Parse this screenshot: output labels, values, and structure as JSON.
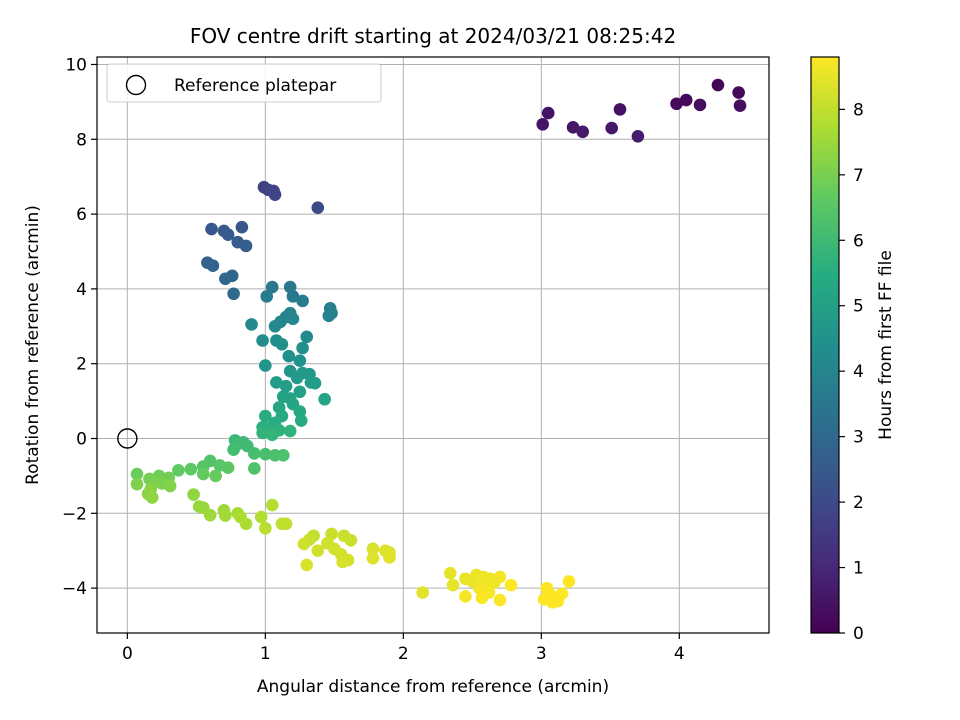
{
  "chart_data": {
    "type": "scatter",
    "title": "FOV centre drift starting at 2024/03/21 08:25:42",
    "xlabel": "Angular distance from reference (arcmin)",
    "ylabel": "Rotation from reference (arcmin)",
    "xlim": [
      -0.22,
      4.65
    ],
    "ylim": [
      -5.2,
      10.2
    ],
    "xticks": [
      0,
      1,
      2,
      3,
      4
    ],
    "yticks": [
      -4,
      -2,
      0,
      2,
      4,
      6,
      8,
      10
    ],
    "grid": true,
    "legend": {
      "position": "top-left",
      "entries": [
        "Reference platepar"
      ]
    },
    "reference_point": {
      "x": 0,
      "y": 0
    },
    "colorbar": {
      "label": "Hours from first FF file",
      "colormap": "viridis",
      "range": [
        0,
        8.8
      ],
      "ticks": [
        0,
        1,
        2,
        3,
        4,
        5,
        6,
        7,
        8
      ]
    },
    "series": [
      {
        "points": [
          {
            "x": 4.28,
            "y": 9.45,
            "t": 0.1
          },
          {
            "x": 4.43,
            "y": 9.25,
            "t": 0.15
          },
          {
            "x": 4.05,
            "y": 9.05,
            "t": 0.2
          },
          {
            "x": 3.98,
            "y": 8.95,
            "t": 0.25
          },
          {
            "x": 4.15,
            "y": 8.92,
            "t": 0.3
          },
          {
            "x": 4.44,
            "y": 8.9,
            "t": 0.35
          },
          {
            "x": 3.57,
            "y": 8.8,
            "t": 0.4
          },
          {
            "x": 3.05,
            "y": 8.7,
            "t": 0.45
          },
          {
            "x": 3.01,
            "y": 8.4,
            "t": 0.5
          },
          {
            "x": 3.23,
            "y": 8.32,
            "t": 0.55
          },
          {
            "x": 3.51,
            "y": 8.3,
            "t": 0.6
          },
          {
            "x": 3.3,
            "y": 8.2,
            "t": 0.65
          },
          {
            "x": 3.7,
            "y": 8.08,
            "t": 0.7
          },
          {
            "x": 0.99,
            "y": 6.72,
            "t": 1.7
          },
          {
            "x": 1.06,
            "y": 6.62,
            "t": 1.75
          },
          {
            "x": 1.02,
            "y": 6.65,
            "t": 1.8
          },
          {
            "x": 1.07,
            "y": 6.52,
            "t": 1.85
          },
          {
            "x": 1.38,
            "y": 6.17,
            "t": 1.95
          },
          {
            "x": 0.61,
            "y": 5.6,
            "t": 2.4
          },
          {
            "x": 0.83,
            "y": 5.65,
            "t": 2.45
          },
          {
            "x": 0.7,
            "y": 5.55,
            "t": 2.5
          },
          {
            "x": 0.73,
            "y": 5.45,
            "t": 2.55
          },
          {
            "x": 0.8,
            "y": 5.25,
            "t": 2.6
          },
          {
            "x": 0.86,
            "y": 5.15,
            "t": 2.65
          },
          {
            "x": 0.58,
            "y": 4.7,
            "t": 2.75
          },
          {
            "x": 0.62,
            "y": 4.62,
            "t": 2.8
          },
          {
            "x": 0.76,
            "y": 4.35,
            "t": 2.9
          },
          {
            "x": 0.71,
            "y": 4.27,
            "t": 2.95
          },
          {
            "x": 0.77,
            "y": 3.87,
            "t": 3.05
          },
          {
            "x": 1.05,
            "y": 4.05,
            "t": 3.5
          },
          {
            "x": 1.18,
            "y": 4.05,
            "t": 3.55
          },
          {
            "x": 1.2,
            "y": 3.8,
            "t": 3.6
          },
          {
            "x": 1.01,
            "y": 3.8,
            "t": 3.65
          },
          {
            "x": 1.27,
            "y": 3.68,
            "t": 3.7
          },
          {
            "x": 1.47,
            "y": 3.48,
            "t": 3.75
          },
          {
            "x": 1.48,
            "y": 3.35,
            "t": 3.8
          },
          {
            "x": 1.46,
            "y": 3.28,
            "t": 3.85
          },
          {
            "x": 1.18,
            "y": 3.35,
            "t": 3.9
          },
          {
            "x": 1.15,
            "y": 3.25,
            "t": 3.95
          },
          {
            "x": 1.11,
            "y": 3.12,
            "t": 4.0
          },
          {
            "x": 1.2,
            "y": 3.2,
            "t": 4.05
          },
          {
            "x": 1.07,
            "y": 3.0,
            "t": 4.1
          },
          {
            "x": 0.9,
            "y": 3.05,
            "t": 4.15
          },
          {
            "x": 1.3,
            "y": 2.72,
            "t": 4.2
          },
          {
            "x": 0.98,
            "y": 2.62,
            "t": 4.25
          },
          {
            "x": 1.08,
            "y": 2.62,
            "t": 4.3
          },
          {
            "x": 1.12,
            "y": 2.52,
            "t": 4.35
          },
          {
            "x": 1.27,
            "y": 2.42,
            "t": 4.4
          },
          {
            "x": 1.17,
            "y": 2.2,
            "t": 4.45
          },
          {
            "x": 1.25,
            "y": 2.08,
            "t": 4.5
          },
          {
            "x": 1.0,
            "y": 1.95,
            "t": 4.55
          },
          {
            "x": 1.18,
            "y": 1.8,
            "t": 4.6
          },
          {
            "x": 1.27,
            "y": 1.75,
            "t": 4.65
          },
          {
            "x": 1.32,
            "y": 1.72,
            "t": 4.7
          },
          {
            "x": 1.23,
            "y": 1.62,
            "t": 4.75
          },
          {
            "x": 1.08,
            "y": 1.5,
            "t": 4.8
          },
          {
            "x": 1.33,
            "y": 1.5,
            "t": 4.85
          },
          {
            "x": 1.36,
            "y": 1.48,
            "t": 4.9
          },
          {
            "x": 1.15,
            "y": 1.4,
            "t": 4.95
          },
          {
            "x": 1.25,
            "y": 1.25,
            "t": 5.0
          },
          {
            "x": 1.13,
            "y": 1.12,
            "t": 5.05
          },
          {
            "x": 1.18,
            "y": 1.07,
            "t": 5.1
          },
          {
            "x": 1.43,
            "y": 1.05,
            "t": 5.15
          },
          {
            "x": 1.2,
            "y": 0.92,
            "t": 5.2
          },
          {
            "x": 1.1,
            "y": 0.83,
            "t": 5.25
          },
          {
            "x": 1.25,
            "y": 0.72,
            "t": 5.3
          },
          {
            "x": 1.12,
            "y": 0.6,
            "t": 5.35
          },
          {
            "x": 1.26,
            "y": 0.48,
            "t": 5.4
          },
          {
            "x": 1.0,
            "y": 0.6,
            "t": 5.45
          },
          {
            "x": 1.07,
            "y": 0.42,
            "t": 5.5
          },
          {
            "x": 0.98,
            "y": 0.3,
            "t": 5.55
          },
          {
            "x": 1.03,
            "y": 0.28,
            "t": 5.6
          },
          {
            "x": 1.1,
            "y": 0.22,
            "t": 5.65
          },
          {
            "x": 1.18,
            "y": 0.2,
            "t": 5.7
          },
          {
            "x": 0.98,
            "y": 0.15,
            "t": 5.75
          },
          {
            "x": 1.05,
            "y": 0.1,
            "t": 5.8
          },
          {
            "x": 0.78,
            "y": -0.05,
            "t": 5.9
          },
          {
            "x": 0.84,
            "y": -0.1,
            "t": 5.95
          },
          {
            "x": 0.8,
            "y": -0.15,
            "t": 6.0
          },
          {
            "x": 0.87,
            "y": -0.2,
            "t": 6.05
          },
          {
            "x": 0.77,
            "y": -0.3,
            "t": 6.1
          },
          {
            "x": 0.92,
            "y": -0.4,
            "t": 6.15
          },
          {
            "x": 1.0,
            "y": -0.42,
            "t": 6.2
          },
          {
            "x": 1.07,
            "y": -0.45,
            "t": 6.25
          },
          {
            "x": 1.13,
            "y": -0.45,
            "t": 6.3
          },
          {
            "x": 0.92,
            "y": -0.8,
            "t": 6.35
          },
          {
            "x": 0.6,
            "y": -0.6,
            "t": 6.4
          },
          {
            "x": 0.55,
            "y": -0.75,
            "t": 6.45
          },
          {
            "x": 0.67,
            "y": -0.72,
            "t": 6.5
          },
          {
            "x": 0.73,
            "y": -0.78,
            "t": 6.55
          },
          {
            "x": 0.46,
            "y": -0.82,
            "t": 6.6
          },
          {
            "x": 0.37,
            "y": -0.85,
            "t": 6.65
          },
          {
            "x": 0.55,
            "y": -0.95,
            "t": 6.7
          },
          {
            "x": 0.64,
            "y": -1.0,
            "t": 6.75
          },
          {
            "x": 0.07,
            "y": -0.95,
            "t": 6.8
          },
          {
            "x": 0.23,
            "y": -1.0,
            "t": 6.85
          },
          {
            "x": 0.3,
            "y": -1.05,
            "t": 6.9
          },
          {
            "x": 0.16,
            "y": -1.08,
            "t": 6.95
          },
          {
            "x": 0.19,
            "y": -1.15,
            "t": 7.0
          },
          {
            "x": 0.25,
            "y": -1.2,
            "t": 7.05
          },
          {
            "x": 0.07,
            "y": -1.22,
            "t": 7.1
          },
          {
            "x": 0.31,
            "y": -1.27,
            "t": 7.15
          },
          {
            "x": 0.17,
            "y": -1.35,
            "t": 7.2
          },
          {
            "x": 0.15,
            "y": -1.48,
            "t": 7.25
          },
          {
            "x": 0.18,
            "y": -1.58,
            "t": 7.3
          },
          {
            "x": 0.48,
            "y": -1.5,
            "t": 7.35
          },
          {
            "x": 0.52,
            "y": -1.82,
            "t": 7.4
          },
          {
            "x": 0.55,
            "y": -1.85,
            "t": 7.45
          },
          {
            "x": 0.7,
            "y": -1.92,
            "t": 7.5
          },
          {
            "x": 0.6,
            "y": -2.05,
            "t": 7.55
          },
          {
            "x": 0.71,
            "y": -2.06,
            "t": 7.6
          },
          {
            "x": 0.8,
            "y": -2.0,
            "t": 7.65
          },
          {
            "x": 0.82,
            "y": -2.1,
            "t": 7.7
          },
          {
            "x": 0.86,
            "y": -2.28,
            "t": 7.75
          },
          {
            "x": 0.97,
            "y": -2.1,
            "t": 7.8
          },
          {
            "x": 1.05,
            "y": -1.78,
            "t": 7.85
          },
          {
            "x": 1.0,
            "y": -2.4,
            "t": 7.9
          },
          {
            "x": 1.12,
            "y": -2.28,
            "t": 7.95
          },
          {
            "x": 1.15,
            "y": -2.28,
            "t": 8.0
          },
          {
            "x": 1.35,
            "y": -2.6,
            "t": 8.05
          },
          {
            "x": 1.32,
            "y": -2.7,
            "t": 8.08
          },
          {
            "x": 1.48,
            "y": -2.55,
            "t": 8.1
          },
          {
            "x": 1.57,
            "y": -2.6,
            "t": 8.12
          },
          {
            "x": 1.62,
            "y": -2.72,
            "t": 8.14
          },
          {
            "x": 1.45,
            "y": -2.8,
            "t": 8.16
          },
          {
            "x": 1.28,
            "y": -2.82,
            "t": 8.18
          },
          {
            "x": 1.38,
            "y": -3.0,
            "t": 8.2
          },
          {
            "x": 1.5,
            "y": -2.95,
            "t": 8.22
          },
          {
            "x": 1.55,
            "y": -3.1,
            "t": 8.24
          },
          {
            "x": 1.6,
            "y": -3.25,
            "t": 8.26
          },
          {
            "x": 1.56,
            "y": -3.3,
            "t": 8.28
          },
          {
            "x": 1.3,
            "y": -3.38,
            "t": 8.3
          },
          {
            "x": 1.78,
            "y": -2.95,
            "t": 8.32
          },
          {
            "x": 1.87,
            "y": -3.0,
            "t": 8.34
          },
          {
            "x": 1.9,
            "y": -3.05,
            "t": 8.36
          },
          {
            "x": 1.78,
            "y": -3.2,
            "t": 8.38
          },
          {
            "x": 1.9,
            "y": -3.18,
            "t": 8.4
          },
          {
            "x": 2.14,
            "y": -4.12,
            "t": 8.45
          },
          {
            "x": 2.34,
            "y": -3.6,
            "t": 8.48
          },
          {
            "x": 2.36,
            "y": -3.92,
            "t": 8.5
          },
          {
            "x": 2.45,
            "y": -3.75,
            "t": 8.52
          },
          {
            "x": 2.5,
            "y": -3.82,
            "t": 8.54
          },
          {
            "x": 2.53,
            "y": -3.65,
            "t": 8.56
          },
          {
            "x": 2.58,
            "y": -3.7,
            "t": 8.58
          },
          {
            "x": 2.6,
            "y": -3.9,
            "t": 8.6
          },
          {
            "x": 2.63,
            "y": -3.75,
            "t": 8.62
          },
          {
            "x": 2.66,
            "y": -3.85,
            "t": 8.64
          },
          {
            "x": 2.7,
            "y": -3.7,
            "t": 8.66
          },
          {
            "x": 2.55,
            "y": -4.0,
            "t": 8.68
          },
          {
            "x": 2.58,
            "y": -4.1,
            "t": 8.7
          },
          {
            "x": 2.62,
            "y": -4.12,
            "t": 8.72
          },
          {
            "x": 2.45,
            "y": -4.22,
            "t": 8.74
          },
          {
            "x": 2.57,
            "y": -4.26,
            "t": 8.76
          },
          {
            "x": 2.7,
            "y": -4.32,
            "t": 8.78
          },
          {
            "x": 2.78,
            "y": -3.92,
            "t": 8.8
          },
          {
            "x": 3.04,
            "y": -4.0,
            "t": 8.8
          },
          {
            "x": 3.06,
            "y": -4.15,
            "t": 8.8
          },
          {
            "x": 3.15,
            "y": -4.15,
            "t": 8.8
          },
          {
            "x": 3.2,
            "y": -3.82,
            "t": 8.8
          },
          {
            "x": 3.02,
            "y": -4.3,
            "t": 8.8
          },
          {
            "x": 3.08,
            "y": -4.38,
            "t": 8.8
          },
          {
            "x": 3.12,
            "y": -4.35,
            "t": 8.8
          },
          {
            "x": 3.1,
            "y": -4.25,
            "t": 8.8
          }
        ]
      }
    ]
  }
}
